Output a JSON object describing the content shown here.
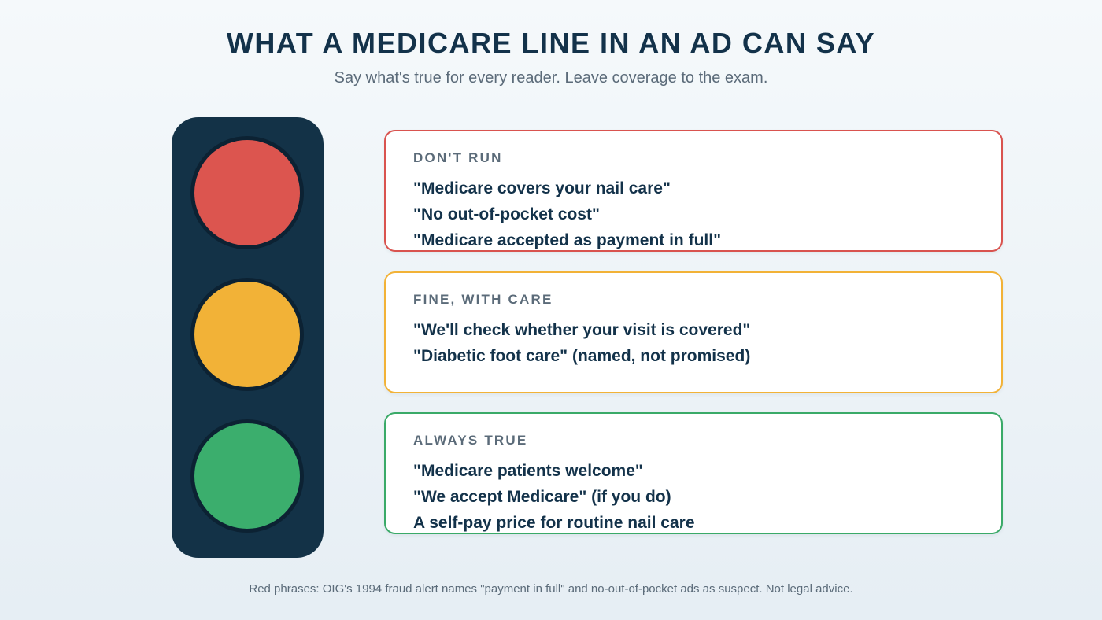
{
  "title": "WHAT A MEDICARE LINE IN AN AD CAN SAY",
  "subtitle": "Say what's true for every reader. Leave coverage to the exam.",
  "colors": {
    "red": "#dc554f",
    "amber": "#f2b237",
    "green": "#3bae6d",
    "housing": "#133247"
  },
  "cards": [
    {
      "label": "DON'T RUN",
      "lines": [
        "\"Medicare covers your nail care\"",
        "\"No out-of-pocket cost\"",
        "\"Medicare accepted as payment in full\""
      ]
    },
    {
      "label": "FINE, WITH CARE",
      "lines": [
        "\"We'll check whether your visit is covered\"",
        "\"Diabetic foot care\" (named, not promised)"
      ]
    },
    {
      "label": "ALWAYS TRUE",
      "lines": [
        "\"Medicare patients welcome\"",
        "\"We accept Medicare\" (if you do)",
        "A self-pay price for routine nail care"
      ]
    }
  ],
  "footnote": "Red phrases: OIG's 1994 fraud alert names \"payment in full\" and no-out-of-pocket ads as suspect. Not legal advice."
}
